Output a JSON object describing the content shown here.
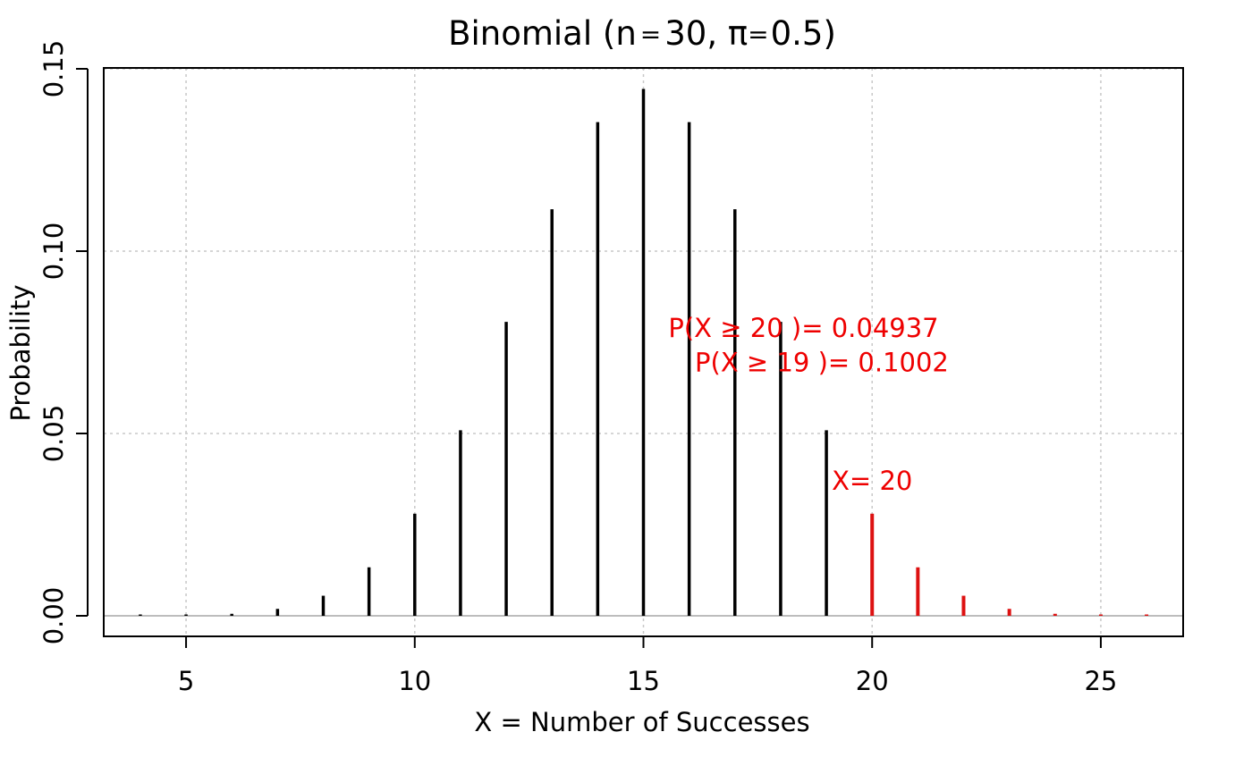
{
  "chart_data": {
    "type": "bar",
    "title": "Binomial (n = 30, π = 0.5)",
    "title_parts": {
      "prefix": "Binomial (n",
      "eq1": "=",
      "n": "30, π",
      "eq2": "=",
      "p": "0.5)"
    },
    "xlabel": "X = Number of Successes",
    "ylabel": "Probability",
    "xlim": [
      3.2,
      26.8
    ],
    "ylim": [
      0,
      0.15
    ],
    "x_ticks": [
      5,
      10,
      15,
      20,
      25
    ],
    "x_tick_labels": [
      "5",
      "10",
      "15",
      "20",
      "25"
    ],
    "y_ticks": [
      0,
      0.05,
      0.1,
      0.15
    ],
    "y_tick_labels": [
      "0.00",
      "0.05",
      "0.10",
      "0.15"
    ],
    "grid": true,
    "x": [
      4,
      5,
      6,
      7,
      8,
      9,
      10,
      11,
      12,
      13,
      14,
      15,
      16,
      17,
      18,
      19,
      20,
      21,
      22,
      23,
      24,
      25,
      26
    ],
    "values": [
      3e-05,
      0.00013,
      0.00055,
      0.0019,
      0.0055,
      0.0133,
      0.028,
      0.0509,
      0.0806,
      0.1115,
      0.1354,
      0.1445,
      0.1354,
      0.1115,
      0.0806,
      0.0509,
      0.028,
      0.0133,
      0.0055,
      0.0019,
      0.00055,
      0.00013,
      3e-05
    ],
    "threshold": 20,
    "colors": {
      "below": "#000000",
      "tail": "#dd1111",
      "annotation": "#ee0000",
      "grid": "#c8c8c8",
      "baseline": "#bdbdbd"
    },
    "annotations": [
      {
        "text": "P(X ≥ 20 )= 0.04937",
        "x": 18.5,
        "y": 0.0765
      },
      {
        "text": "P(X ≥ 19 )= 0.1002",
        "x": 18.9,
        "y": 0.067
      },
      {
        "text": "X= 20",
        "x": 20.0,
        "y": 0.0345
      }
    ]
  }
}
